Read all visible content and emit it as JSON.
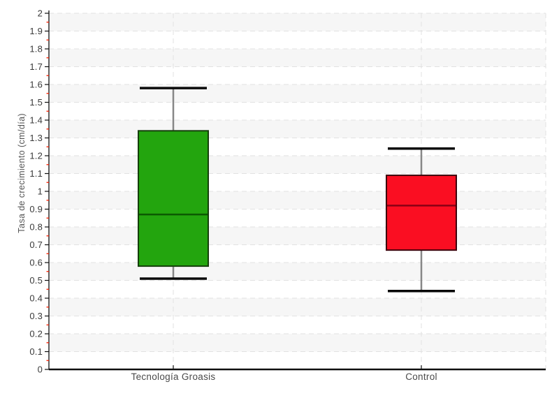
{
  "chart_data": {
    "type": "boxplot",
    "ylabel": "Tasa de crecimiento (cm/día)",
    "xlabel": "",
    "ylim": [
      0,
      2
    ],
    "y_major_step": 0.1,
    "y_minor_step": 0.05,
    "y_tick_labels": [
      "0",
      "0.1",
      "0.2",
      "0.3",
      "0.4",
      "0.5",
      "0.6",
      "0.7",
      "0.8",
      "0.9",
      "1",
      "1.1",
      "1.2",
      "1.3",
      "1.4",
      "1.5",
      "1.6",
      "1.7",
      "1.8",
      "1.9",
      "2"
    ],
    "grid": "dashed horizontal lines at every 0.1; dashed vertical lines at category centers and right edge; alternating shaded bands",
    "legend": "none",
    "categories": [
      "Tecnología Groasis",
      "Control"
    ],
    "series": [
      {
        "name": "Tecnología Groasis",
        "low": 0.51,
        "q1": 0.58,
        "median": 0.87,
        "q3": 1.34,
        "high": 1.58,
        "fill": "#23a50e",
        "border": "#153e0b",
        "median_color": "#0b5a02"
      },
      {
        "name": "Control",
        "low": 0.44,
        "q1": 0.67,
        "median": 0.92,
        "q3": 1.09,
        "high": 1.24,
        "fill": "#fa0e22",
        "border": "#3d020c",
        "median_color": "#8a0014"
      }
    ]
  },
  "style": {
    "background": "#ffffff",
    "band_color": "#f6f6f6",
    "grid_color": "#e2e2e2",
    "axis_color": "#101010",
    "major_tick_color": "#101010",
    "minor_tick_color": "#ff2000",
    "whisker_stem_color": "#878787",
    "whisker_cap_color": "#0a0a0a",
    "tick_label_color": "#3a3a3a",
    "category_label_color": "#4a4a4a",
    "ylabel_color": "#555555"
  }
}
